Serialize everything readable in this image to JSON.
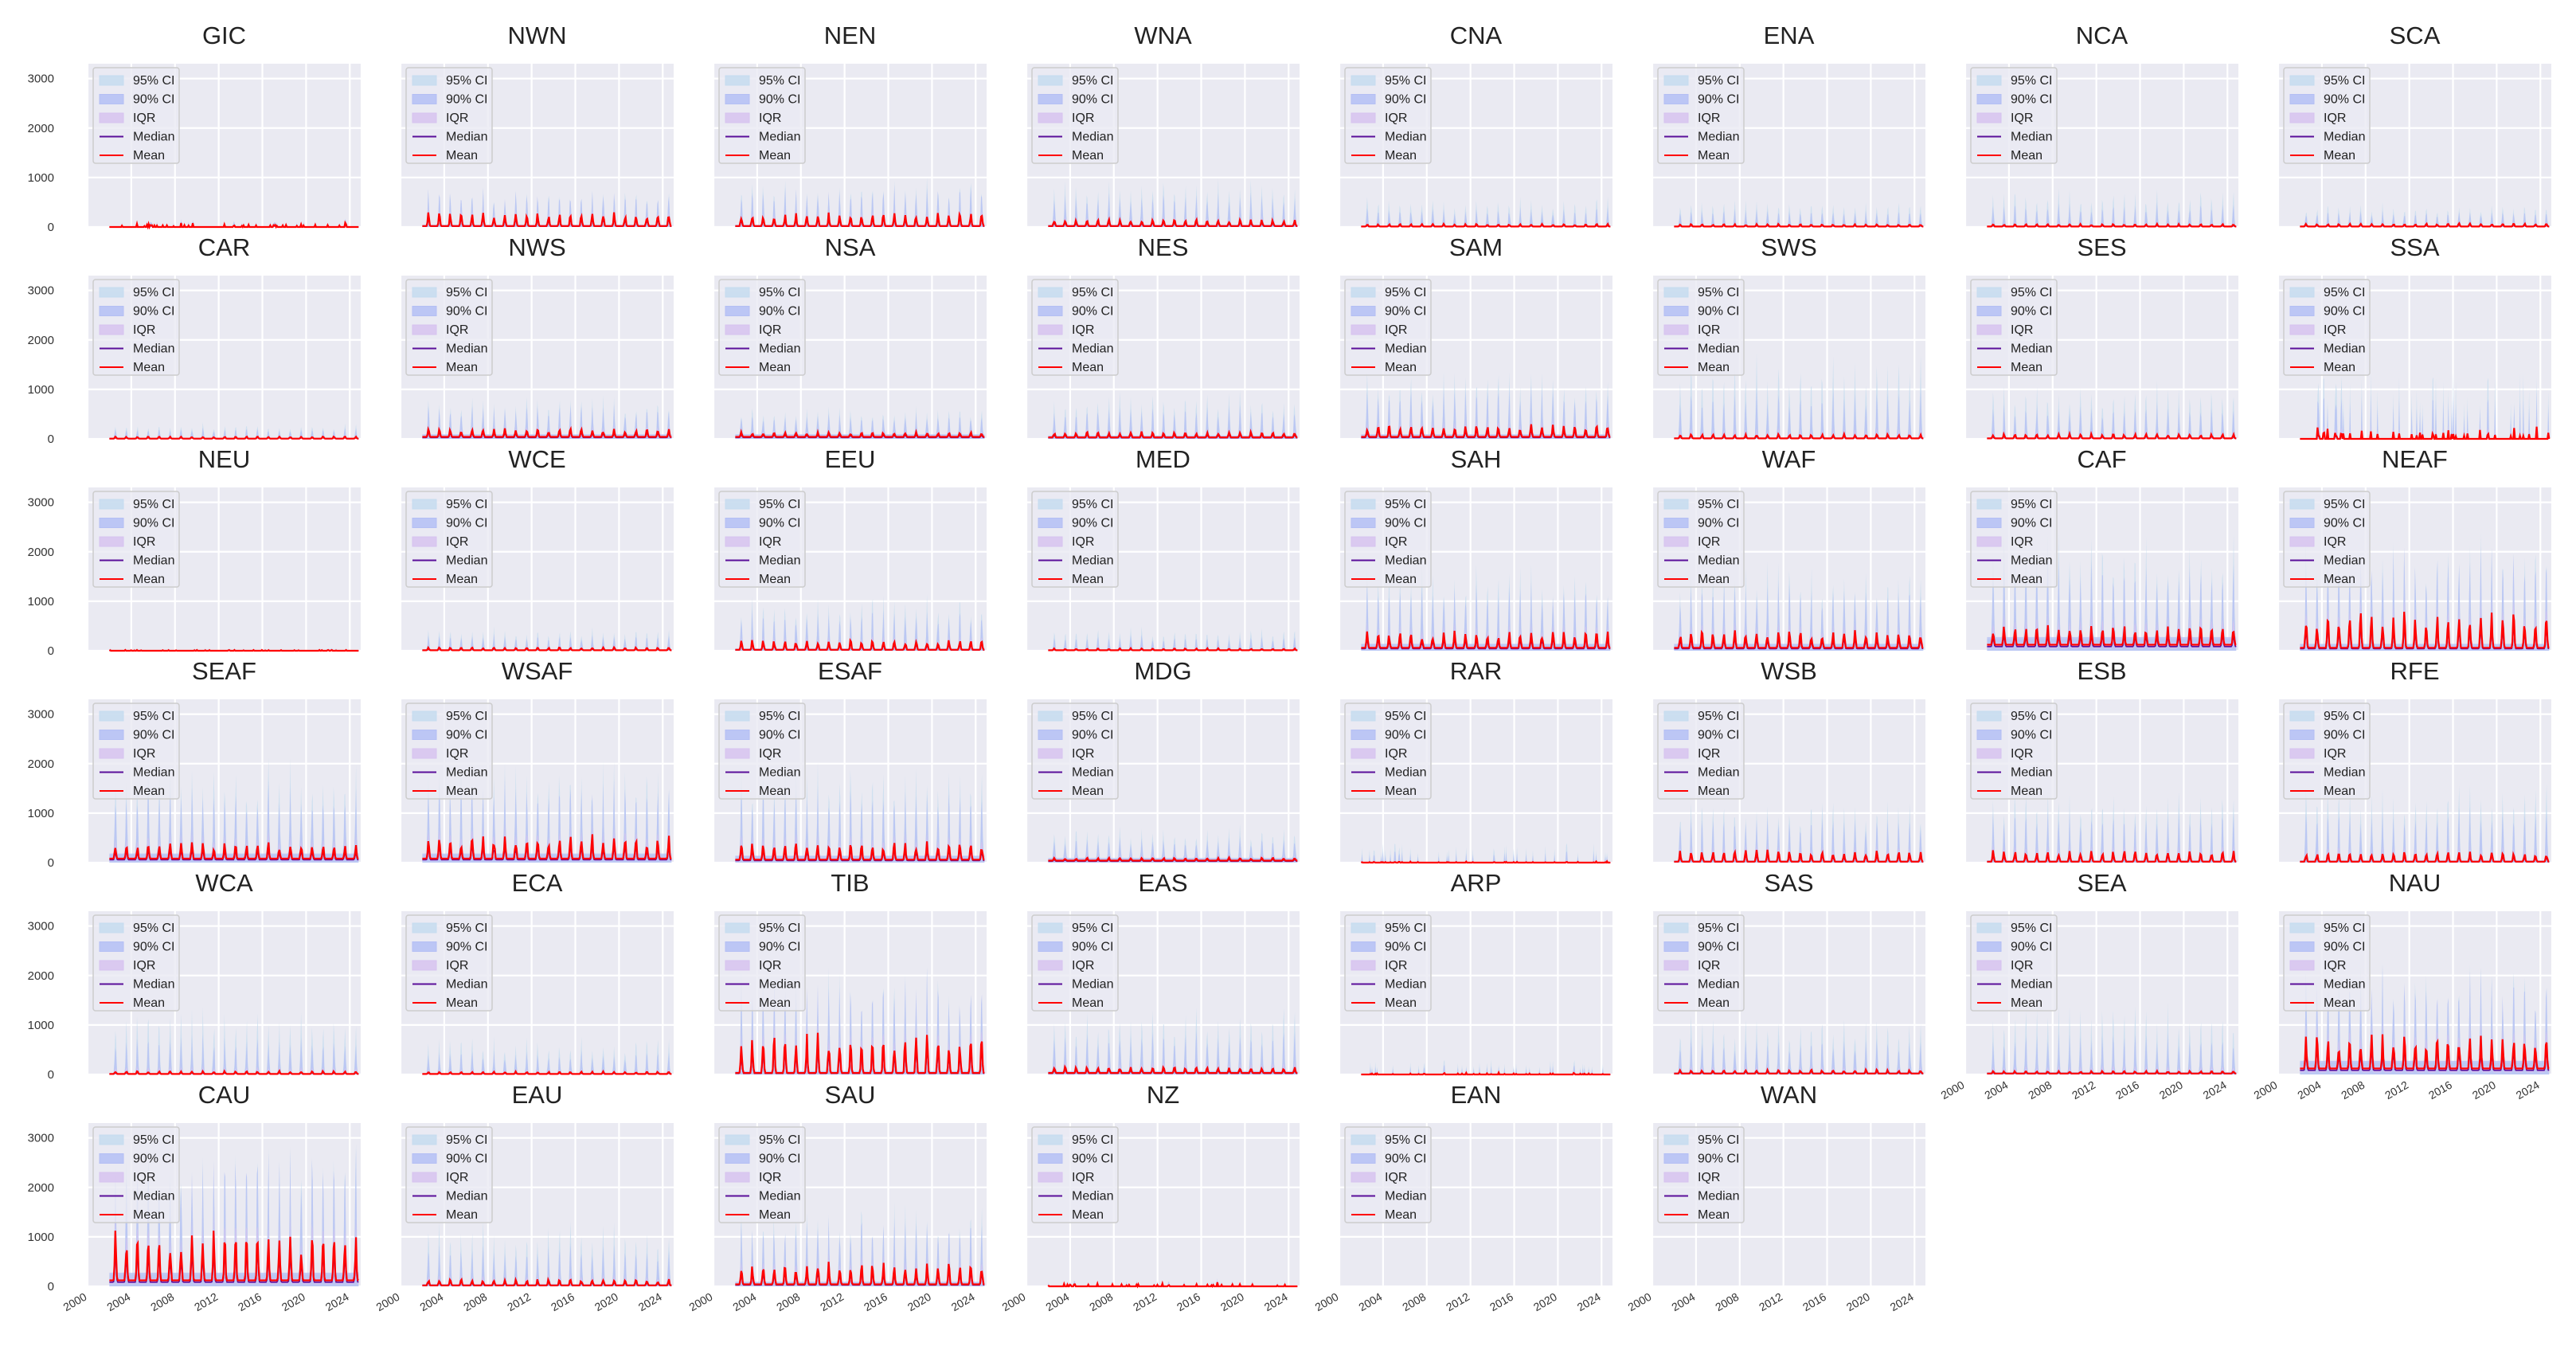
{
  "chart_data": {
    "type": "area",
    "layout": "small-multiples grid, 8 columns x 6 rows",
    "shared_x": {
      "range": [
        2000,
        2025
      ],
      "tick_labels": [
        "2000",
        "2004",
        "2008",
        "2012",
        "2016",
        "2020",
        "2024"
      ]
    },
    "shared_y": {
      "range": [
        0,
        3300
      ],
      "tick_labels": [
        "0",
        "1000",
        "2000",
        "3000"
      ]
    },
    "grid": true,
    "legend_placement": "upper-left",
    "legend": [
      {
        "label": "95% CI",
        "color": "#c6dcef"
      },
      {
        "label": "90% CI",
        "color": "#b4bff4"
      },
      {
        "label": "IQR",
        "color": "#d7c3ef"
      },
      {
        "label": "Median",
        "color": "#5a0f9a"
      },
      {
        "label": "Mean",
        "color": "#ff0000"
      }
    ],
    "colors": {
      "panel_bg": "#eaeaf2",
      "grid": "#ffffff",
      "ci95": "#c6dcef",
      "ci90": "#b4bff4",
      "iqr": "#d7c3ef",
      "median": "#5a0f9a",
      "mean": "#ff0000"
    },
    "panels": [
      {
        "name": "GIC",
        "peak_mean": 90,
        "base_mean": 0,
        "ci95_peak": 120,
        "sparse": true
      },
      {
        "name": "NWN",
        "peak_mean": 230,
        "base_mean": 20,
        "ci95_peak": 850
      },
      {
        "name": "NEN",
        "peak_mean": 230,
        "base_mean": 20,
        "ci95_peak": 1050
      },
      {
        "name": "WNA",
        "peak_mean": 130,
        "base_mean": 20,
        "ci95_peak": 1000
      },
      {
        "name": "CNA",
        "peak_mean": 50,
        "base_mean": 10,
        "ci95_peak": 650
      },
      {
        "name": "ENA",
        "peak_mean": 50,
        "base_mean": 10,
        "ci95_peak": 600
      },
      {
        "name": "NCA",
        "peak_mean": 50,
        "base_mean": 10,
        "ci95_peak": 800
      },
      {
        "name": "SCA",
        "peak_mean": 60,
        "base_mean": 10,
        "ci95_peak": 500
      },
      {
        "name": "CAR",
        "peak_mean": 40,
        "base_mean": 5,
        "ci95_peak": 350
      },
      {
        "name": "NWS",
        "peak_mean": 170,
        "base_mean": 40,
        "ci95_peak": 900
      },
      {
        "name": "NSA",
        "peak_mean": 120,
        "base_mean": 40,
        "ci95_peak": 700
      },
      {
        "name": "NES",
        "peak_mean": 120,
        "base_mean": 30,
        "ci95_peak": 1000
      },
      {
        "name": "SAM",
        "peak_mean": 230,
        "base_mean": 40,
        "ci95_peak": 1500
      },
      {
        "name": "SWS",
        "peak_mean": 80,
        "base_mean": 10,
        "ci95_peak": 1800
      },
      {
        "name": "SES",
        "peak_mean": 80,
        "base_mean": 10,
        "ci95_peak": 1200
      },
      {
        "name": "SSA",
        "peak_mean": 250,
        "base_mean": 0,
        "ci95_peak": 1400,
        "sparse": true
      },
      {
        "name": "NEU",
        "peak_mean": 30,
        "base_mean": 0,
        "ci95_peak": 60,
        "sparse": true
      },
      {
        "name": "WCE",
        "peak_mean": 60,
        "base_mean": 10,
        "ci95_peak": 500
      },
      {
        "name": "EEU",
        "peak_mean": 180,
        "base_mean": 20,
        "ci95_peak": 1200
      },
      {
        "name": "MED",
        "peak_mean": 40,
        "base_mean": 10,
        "ci95_peak": 500
      },
      {
        "name": "SAH",
        "peak_mean": 320,
        "base_mean": 60,
        "ci95_peak": 1900
      },
      {
        "name": "WAF",
        "peak_mean": 330,
        "base_mean": 60,
        "ci95_peak": 1900
      },
      {
        "name": "CAF",
        "peak_mean": 430,
        "base_mean": 120,
        "ci95_peak": 2500
      },
      {
        "name": "NEAF",
        "peak_mean": 620,
        "base_mean": 60,
        "ci95_peak": 2400
      },
      {
        "name": "SEAF",
        "peak_mean": 330,
        "base_mean": 80,
        "ci95_peak": 2200
      },
      {
        "name": "WSAF",
        "peak_mean": 460,
        "base_mean": 80,
        "ci95_peak": 2200
      },
      {
        "name": "ESAF",
        "peak_mean": 340,
        "base_mean": 60,
        "ci95_peak": 2100
      },
      {
        "name": "MDG",
        "peak_mean": 90,
        "base_mean": 40,
        "ci95_peak": 800
      },
      {
        "name": "RAR",
        "peak_mean": 30,
        "base_mean": 0,
        "ci95_peak": 400,
        "sparse": true
      },
      {
        "name": "WSB",
        "peak_mean": 200,
        "base_mean": 20,
        "ci95_peak": 1400
      },
      {
        "name": "ESB",
        "peak_mean": 200,
        "base_mean": 20,
        "ci95_peak": 1700
      },
      {
        "name": "RFE",
        "peak_mean": 170,
        "base_mean": 20,
        "ci95_peak": 1700
      },
      {
        "name": "WCA",
        "peak_mean": 60,
        "base_mean": 10,
        "ci95_peak": 1400
      },
      {
        "name": "ECA",
        "peak_mean": 50,
        "base_mean": 10,
        "ci95_peak": 800
      },
      {
        "name": "TIB",
        "peak_mean": 650,
        "base_mean": 30,
        "ci95_peak": 2300
      },
      {
        "name": "EAS",
        "peak_mean": 130,
        "base_mean": 30,
        "ci95_peak": 1500
      },
      {
        "name": "ARP",
        "peak_mean": 40,
        "base_mean": 0,
        "ci95_peak": 300,
        "sparse": true
      },
      {
        "name": "SAS",
        "peak_mean": 80,
        "base_mean": 20,
        "ci95_peak": 1300
      },
      {
        "name": "SEA",
        "peak_mean": 60,
        "base_mean": 20,
        "ci95_peak": 1500
      },
      {
        "name": "NAU",
        "peak_mean": 650,
        "base_mean": 120,
        "ci95_peak": 2300
      },
      {
        "name": "CAU",
        "peak_mean": 900,
        "base_mean": 120,
        "ci95_peak": 3100
      },
      {
        "name": "EAU",
        "peak_mean": 120,
        "base_mean": 20,
        "ci95_peak": 1400
      },
      {
        "name": "SAU",
        "peak_mean": 400,
        "base_mean": 40,
        "ci95_peak": 1800
      },
      {
        "name": "NZ",
        "peak_mean": 80,
        "base_mean": 0,
        "ci95_peak": 120,
        "sparse": true
      },
      {
        "name": "EAN",
        "peak_mean": 0,
        "base_mean": 0,
        "ci95_peak": 0,
        "empty": true
      },
      {
        "name": "WAN",
        "peak_mean": 0,
        "base_mean": 0,
        "ci95_peak": 0,
        "empty": true
      }
    ]
  }
}
